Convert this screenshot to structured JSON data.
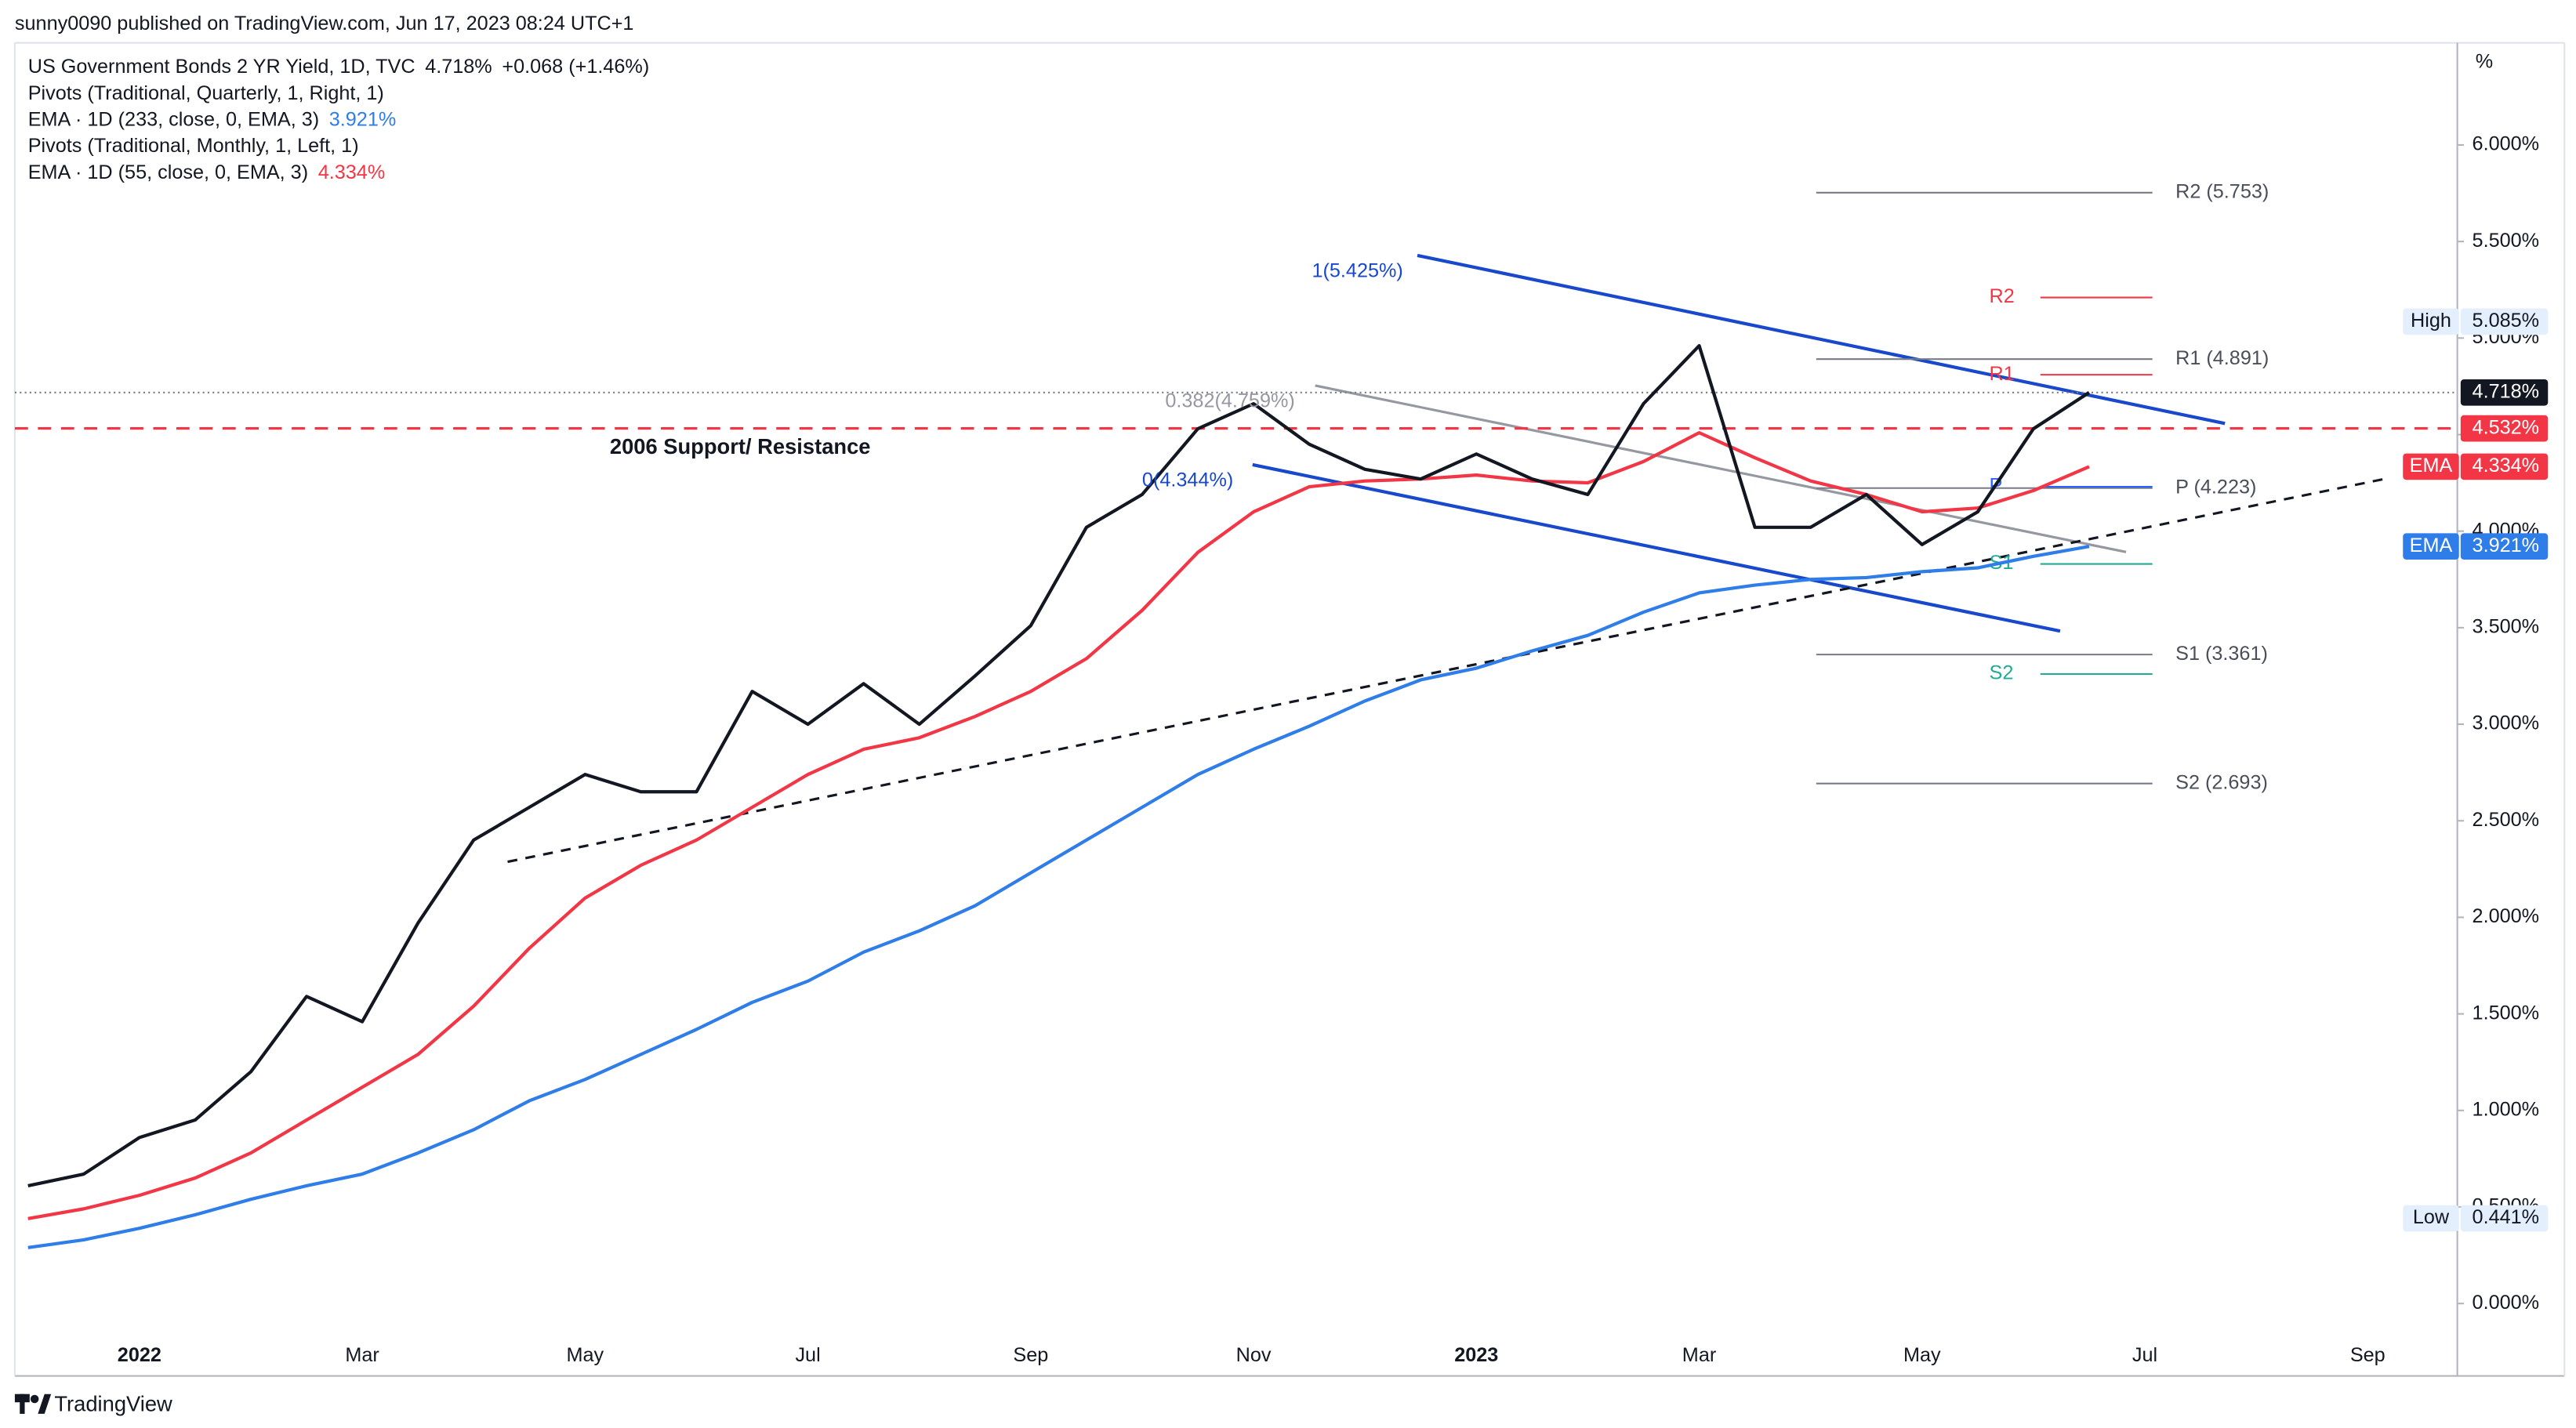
{
  "header": {
    "publisher": "sunny0090 published on TradingView.com, Jun 17, 2023 08:24 UTC+1"
  },
  "footer": {
    "brand": "TradingView"
  },
  "chart_data": {
    "type": "line",
    "unit": "%",
    "categories": [
      null,
      null,
      "2022",
      null,
      null,
      null,
      "Mar",
      null,
      null,
      null,
      "May",
      null,
      null,
      null,
      "Jul",
      null,
      null,
      null,
      "Sep",
      null,
      null,
      null,
      "Nov",
      null,
      null,
      null,
      "2023",
      null,
      null,
      null,
      "Mar",
      null,
      null,
      null,
      "May",
      null,
      null,
      null,
      "Jul",
      null,
      null,
      null,
      "Sep",
      null,
      null
    ],
    "series": [
      {
        "name": "US Government Bonds 2 YR Yield, 1D, TVC",
        "last_label": "4.718%",
        "change": "+0.068 (+1.46%)",
        "color": "#131722",
        "values": [
          0.61,
          0.67,
          0.86,
          0.95,
          1.2,
          1.59,
          1.46,
          1.97,
          2.4,
          2.57,
          2.74,
          2.65,
          2.65,
          3.17,
          3.0,
          3.21,
          3.0,
          3.25,
          3.51,
          4.02,
          4.19,
          4.53,
          4.66,
          4.45,
          4.32,
          4.27,
          4.4,
          4.27,
          4.19,
          4.66,
          4.96,
          4.02,
          4.02,
          4.19,
          3.93,
          4.1,
          4.53,
          4.718,
          null,
          null,
          null,
          null,
          null,
          null,
          null
        ]
      },
      {
        "name": "EMA · 1D (233, close, 0, EMA, 3)",
        "last_label": "3.921%",
        "color": "#2e7de8",
        "values": [
          0.29,
          0.33,
          0.39,
          0.46,
          0.54,
          0.61,
          0.67,
          0.78,
          0.9,
          1.05,
          1.16,
          1.29,
          1.42,
          1.56,
          1.67,
          1.82,
          1.93,
          2.06,
          2.23,
          2.4,
          2.57,
          2.74,
          2.87,
          2.99,
          3.12,
          3.23,
          3.29,
          3.38,
          3.46,
          3.58,
          3.68,
          3.72,
          3.75,
          3.76,
          3.79,
          3.81,
          3.87,
          3.921,
          null,
          null,
          null,
          null,
          null,
          null,
          null
        ]
      },
      {
        "name": "EMA · 1D (55, close, 0, EMA, 3)",
        "last_label": "4.334%",
        "color": "#f23645",
        "values": [
          0.44,
          0.49,
          0.56,
          0.65,
          0.78,
          0.95,
          1.12,
          1.29,
          1.54,
          1.84,
          2.1,
          2.27,
          2.4,
          2.57,
          2.74,
          2.87,
          2.93,
          3.04,
          3.17,
          3.34,
          3.59,
          3.89,
          4.1,
          4.23,
          4.26,
          4.27,
          4.29,
          4.26,
          4.25,
          4.36,
          4.51,
          4.38,
          4.26,
          4.19,
          4.1,
          4.12,
          4.21,
          4.334,
          null,
          null,
          null,
          null,
          null,
          null,
          null
        ]
      }
    ],
    "pivots": [
      {
        "name": "Pivots (Traditional, Quarterly, 1, Right, 1)",
        "color": "#787b86",
        "levels": [
          {
            "label": "R2 (5.753)",
            "value": 5.753
          },
          {
            "label": "R1 (4.891)",
            "value": 4.891
          },
          {
            "label": "P (4.223)",
            "value": 4.223
          },
          {
            "label": "S1 (3.361)",
            "value": 3.361
          },
          {
            "label": "S2 (2.693)",
            "value": 2.693
          }
        ]
      },
      {
        "name": "Pivots (Traditional, Monthly, 1, Left, 1)",
        "levels": [
          {
            "label": "R2",
            "value": 5.21,
            "color": "#f23645"
          },
          {
            "label": "R1",
            "value": 4.81,
            "color": "#f23645"
          },
          {
            "label": "P",
            "value": 4.23,
            "color": "#2962ff"
          },
          {
            "label": "S1",
            "value": 3.83,
            "color": "#22ab94"
          },
          {
            "label": "S2",
            "value": 3.26,
            "color": "#22ab94"
          }
        ]
      }
    ],
    "price_labels": [
      {
        "label": "High",
        "value": 5.085,
        "value_label": "5.085%",
        "color": "#e3effd"
      },
      {
        "value": 4.718,
        "value_label": "4.718%",
        "color": "#131722",
        "line": "dotted"
      },
      {
        "value": 4.532,
        "value_label": "4.532%",
        "color": "#f23645",
        "line": "dashed"
      },
      {
        "label": "EMA",
        "value": 4.334,
        "value_label": "4.334%",
        "color": "#f23645"
      },
      {
        "label": "EMA",
        "value": 3.921,
        "value_label": "3.921%",
        "color": "#2e7de8"
      },
      {
        "label": "Low",
        "value": 0.441,
        "value_label": "0.441%",
        "color": "#e3effd"
      }
    ],
    "annotations": [
      {
        "text": "2006 Support/ Resistance",
        "color": "#131722"
      },
      {
        "text": "1(5.425%)",
        "color": "#1848cc"
      },
      {
        "text": "0.382(4.759%)",
        "color": "#9598a1"
      },
      {
        "text": "0(4.344%)",
        "color": "#1848cc"
      }
    ],
    "ylim": [
      -0.375,
      6.58
    ],
    "yticks": [
      {
        "value": 0,
        "label": "0.000%"
      },
      {
        "value": 0.5,
        "label": "0.500%"
      },
      {
        "value": 1,
        "label": "1.000%"
      },
      {
        "value": 1.5,
        "label": "1.500%"
      },
      {
        "value": 2,
        "label": "2.000%"
      },
      {
        "value": 2.5,
        "label": "2.500%"
      },
      {
        "value": 3,
        "label": "3.000%"
      },
      {
        "value": 3.5,
        "label": "3.500%"
      },
      {
        "value": 4,
        "label": "4.000%"
      },
      {
        "value": 4.5,
        "label": "4.500%"
      },
      {
        "value": 5,
        "label": "5.000%"
      },
      {
        "value": 5.5,
        "label": "5.500%"
      },
      {
        "value": 6,
        "label": "6.000%"
      }
    ],
    "grid": false
  }
}
